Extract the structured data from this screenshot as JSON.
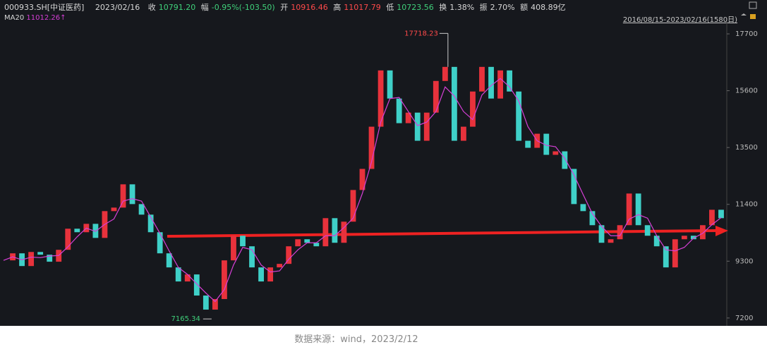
{
  "header": {
    "code": "000933.SH[中证医药]",
    "date": "2023/02/16",
    "close_label": "收",
    "close": "10791.20",
    "change_label": "幅",
    "change": "-0.95%(-103.50)",
    "open_label": "开",
    "open": "10916.46",
    "high_label": "高",
    "high": "11017.79",
    "low_label": "低",
    "low": "10723.56",
    "turnover_label": "换",
    "turnover": "1.38%",
    "amplitude_label": "振",
    "amplitude": "2.70%",
    "amount_label": "额",
    "amount": "408.89亿",
    "ma_label": "MA20",
    "ma_value": "11012.26↑",
    "range": "2016/08/15-2023/02/16(1580日)"
  },
  "chart_data": {
    "type": "candle",
    "ylim": [
      6910,
      18170
    ],
    "yticks": [
      7200,
      9300,
      11400,
      13500,
      15600,
      17700
    ],
    "up_color": "#e8323c",
    "down_color": "#3fd0c8",
    "ma_color": "#d63fd6",
    "series": [
      {
        "name": "close",
        "values": [
          9330,
          9590,
          9120,
          9640,
          9540,
          9280,
          9720,
          10500,
          10370,
          10680,
          10160,
          11150,
          11280,
          12140,
          11410,
          11020,
          10370,
          9590,
          9070,
          8550,
          8810,
          8030,
          7510,
          7900,
          9330,
          10240,
          9850,
          9070,
          8550,
          9070,
          9200,
          9850,
          10110,
          9980,
          9850,
          10890,
          9980,
          10760,
          11930,
          12710,
          14270,
          16350,
          15310,
          14400,
          14790,
          13750,
          14790,
          15960,
          16480,
          13750,
          14270,
          15570,
          16480,
          15310,
          16350,
          15570,
          13750,
          13490,
          14010,
          13230,
          13360,
          12710,
          11410,
          11150,
          10630,
          9980,
          10110,
          10630,
          11800,
          10630,
          10240,
          9850,
          9070,
          10110,
          10240,
          10110,
          10630,
          11200,
          10890
        ]
      },
      {
        "name": "MA20",
        "values": [
          9330,
          9460,
          9350,
          9450,
          9430,
          9490,
          9510,
          9830,
          10200,
          10520,
          10400,
          10660,
          10860,
          11520,
          11610,
          11520,
          10930,
          10330,
          9680,
          9070,
          8810,
          8460,
          8120,
          7810,
          8250,
          9160,
          9810,
          9720,
          9160,
          8900,
          8940,
          9370,
          9720,
          9980,
          9980,
          10240,
          10240,
          10540,
          10890,
          11800,
          12970,
          14440,
          15310,
          15350,
          14830,
          14310,
          14440,
          14830,
          15740,
          15400,
          14830,
          14530,
          15440,
          15790,
          16050,
          15740,
          15220,
          14270,
          13750,
          13580,
          13530,
          13100,
          12490,
          11760,
          11060,
          10590,
          10240,
          10240,
          10850,
          11020,
          10890,
          10240,
          9720,
          9680,
          9810,
          10150,
          10330,
          10650,
          10910
        ]
      }
    ],
    "max_annotation": 17718.23,
    "min_annotation": 7165.34
  },
  "caption": "数据来源：wind，2023/2/12"
}
